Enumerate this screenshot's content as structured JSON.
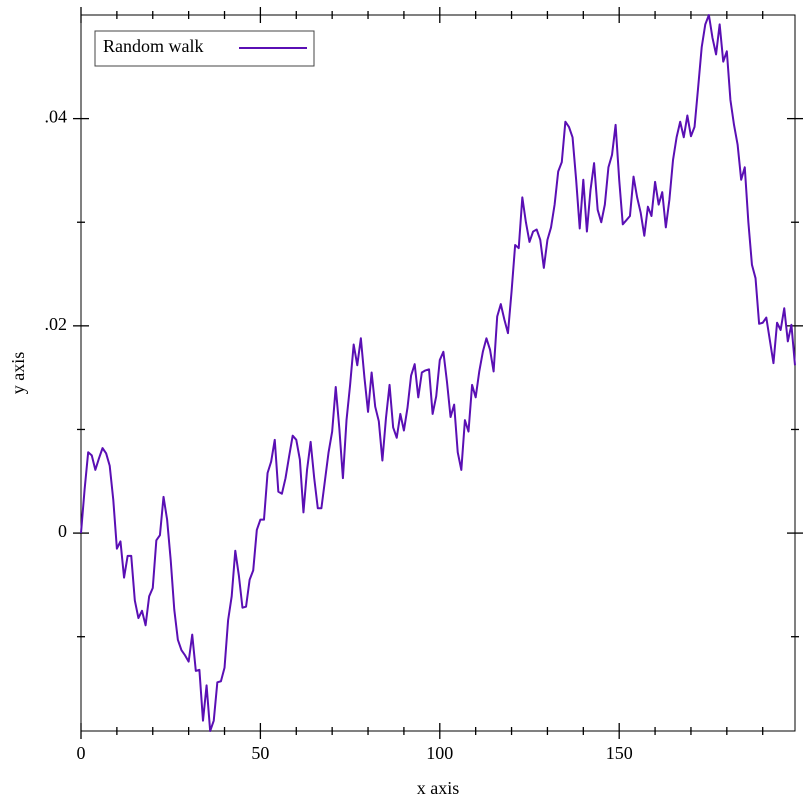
{
  "chart_data": {
    "type": "line",
    "xlabel": "x axis",
    "ylabel": "y axis",
    "xlim": [
      0,
      199
    ],
    "ylim": [
      -0.0191,
      0.05
    ],
    "xticks": [
      0,
      50,
      100,
      150
    ],
    "xminorticks": [
      10,
      20,
      30,
      40,
      60,
      70,
      80,
      90,
      110,
      120,
      130,
      140,
      160,
      170,
      180,
      190
    ],
    "yticks": [
      0,
      {
        "value": 0.02,
        "label": ".02"
      },
      {
        "value": 0.04,
        "label": ".04"
      }
    ],
    "yminorticks": [
      -0.01,
      0.01,
      0.03
    ],
    "legend": "top-left",
    "x": [
      0,
      1,
      2,
      3,
      4,
      5,
      6,
      7,
      8,
      9,
      10,
      11,
      12,
      13,
      14,
      15,
      16,
      17,
      18,
      19,
      20,
      21,
      22,
      23,
      24,
      25,
      26,
      27,
      28,
      29,
      30,
      31,
      32,
      33,
      34,
      35,
      36,
      37,
      38,
      39,
      40,
      41,
      42,
      43,
      44,
      45,
      46,
      47,
      48,
      49,
      50,
      51,
      52,
      53,
      54,
      55,
      56,
      57,
      58,
      59,
      60,
      61,
      62,
      63,
      64,
      65,
      66,
      67,
      68,
      69,
      70,
      71,
      72,
      73,
      74,
      75,
      76,
      77,
      78,
      79,
      80,
      81,
      82,
      83,
      84,
      85,
      86,
      87,
      88,
      89,
      90,
      91,
      92,
      93,
      94,
      95,
      96,
      97,
      98,
      99,
      100,
      101,
      102,
      103,
      104,
      105,
      106,
      107,
      108,
      109,
      110,
      111,
      112,
      113,
      114,
      115,
      116,
      117,
      118,
      119,
      120,
      121,
      122,
      123,
      124,
      125,
      126,
      127,
      128,
      129,
      130,
      131,
      132,
      133,
      134,
      135,
      136,
      137,
      138,
      139,
      140,
      141,
      142,
      143,
      144,
      145,
      146,
      147,
      148,
      149,
      150,
      151,
      152,
      153,
      154,
      155,
      156,
      157,
      158,
      159,
      160,
      161,
      162,
      163,
      164,
      165,
      166,
      167,
      168,
      169,
      170,
      171,
      172,
      173,
      174,
      175,
      176,
      177,
      178,
      179,
      180,
      181,
      182,
      183,
      184,
      185,
      186,
      187,
      188,
      189,
      190,
      191,
      192,
      193,
      194,
      195,
      196,
      197,
      198,
      199
    ],
    "series": [
      {
        "name": "Random walk",
        "color": "#5a0fb4",
        "values": [
          0,
          0.0042,
          0.0078,
          0.0075,
          0.0061,
          0.0072,
          0.0082,
          0.0077,
          0.0065,
          0.0032,
          -0.0015,
          -0.0008,
          -0.0043,
          -0.0022,
          -0.0022,
          -0.0065,
          -0.0082,
          -0.0075,
          -0.0089,
          -0.0061,
          -0.0053,
          -0.0007,
          -0.0002,
          0.0035,
          0.0013,
          -0.0026,
          -0.0074,
          -0.0103,
          -0.0113,
          -0.0118,
          -0.0124,
          -0.0098,
          -0.0133,
          -0.0132,
          -0.0181,
          -0.0147,
          -0.0191,
          -0.0181,
          -0.0144,
          -0.0143,
          -0.013,
          -0.0084,
          -0.0061,
          -0.0017,
          -0.0041,
          -0.0072,
          -0.0071,
          -0.0045,
          -0.0036,
          0.0003,
          0.0013,
          0.0013,
          0.0058,
          0.0069,
          0.009,
          0.004,
          0.0038,
          0.0053,
          0.0074,
          0.0094,
          0.009,
          0.0071,
          0.002,
          0.0061,
          0.0088,
          0.0053,
          0.0024,
          0.0024,
          0.0051,
          0.0078,
          0.0098,
          0.0141,
          0.0101,
          0.0053,
          0.0109,
          0.0143,
          0.0182,
          0.0162,
          0.0188,
          0.015,
          0.0117,
          0.0155,
          0.0122,
          0.0108,
          0.007,
          0.0111,
          0.0143,
          0.0102,
          0.0092,
          0.0115,
          0.0099,
          0.0121,
          0.0152,
          0.0163,
          0.0131,
          0.0155,
          0.0157,
          0.0158,
          0.0115,
          0.0132,
          0.0167,
          0.0175,
          0.0146,
          0.0112,
          0.0124,
          0.0078,
          0.0061,
          0.0109,
          0.0098,
          0.0143,
          0.0131,
          0.0156,
          0.0175,
          0.0188,
          0.0177,
          0.0156,
          0.0209,
          0.0221,
          0.0206,
          0.0193,
          0.0233,
          0.0278,
          0.0275,
          0.0324,
          0.03,
          0.0281,
          0.0291,
          0.0293,
          0.0283,
          0.0256,
          0.0283,
          0.0295,
          0.0317,
          0.0349,
          0.0358,
          0.0397,
          0.0392,
          0.0382,
          0.0341,
          0.0294,
          0.0341,
          0.0291,
          0.0331,
          0.0357,
          0.0312,
          0.03,
          0.0317,
          0.0353,
          0.0365,
          0.0394,
          0.0341,
          0.0298,
          0.0302,
          0.0306,
          0.0344,
          0.0324,
          0.0309,
          0.0287,
          0.0315,
          0.0306,
          0.0339,
          0.0317,
          0.0329,
          0.0295,
          0.0322,
          0.036,
          0.0382,
          0.0397,
          0.0382,
          0.0403,
          0.0383,
          0.0392,
          0.043,
          0.0469,
          0.0491,
          0.05,
          0.0478,
          0.0462,
          0.0491,
          0.0455,
          0.0465,
          0.0418,
          0.0394,
          0.0375,
          0.0341,
          0.0353,
          0.03,
          0.0259,
          0.0246,
          0.0202,
          0.0203,
          0.0208,
          0.0186,
          0.0164,
          0.0203,
          0.0196,
          0.0217,
          0.0185,
          0.0201,
          0.0162
        ]
      }
    ]
  }
}
